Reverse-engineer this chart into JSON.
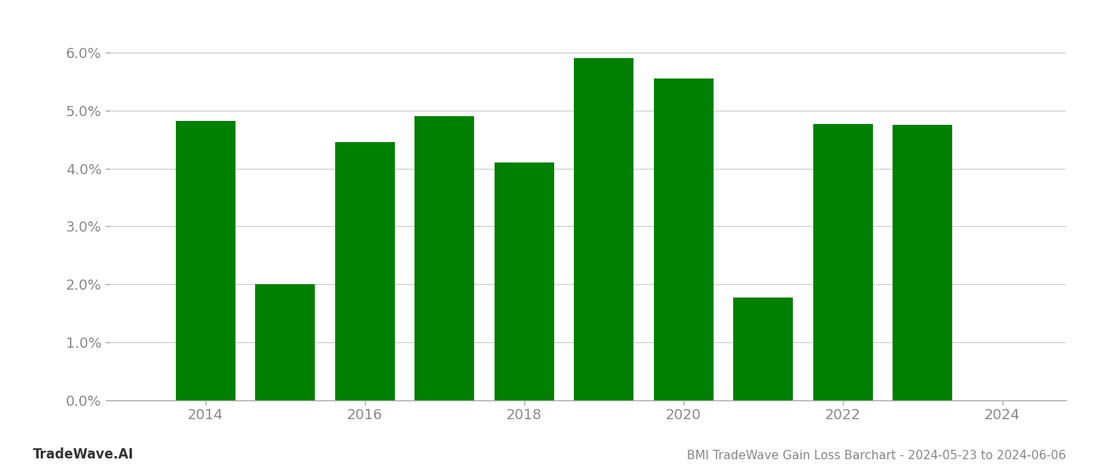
{
  "years": [
    2014,
    2015,
    2016,
    2017,
    2018,
    2019,
    2020,
    2021,
    2022,
    2023
  ],
  "values": [
    0.0482,
    0.02,
    0.0445,
    0.049,
    0.041,
    0.059,
    0.0555,
    0.0178,
    0.0477,
    0.0475
  ],
  "bar_color": "#008000",
  "background_color": "#ffffff",
  "grid_color": "#cccccc",
  "ylim": [
    0.0,
    0.065
  ],
  "yticks": [
    0.0,
    0.01,
    0.02,
    0.03,
    0.04,
    0.05,
    0.06
  ],
  "ytick_labels": [
    "0.0%",
    "1.0%",
    "2.0%",
    "3.0%",
    "4.0%",
    "5.0%",
    "6.0%"
  ],
  "xtick_labels": [
    "2014",
    "2016",
    "2018",
    "2020",
    "2022",
    "2024"
  ],
  "xtick_positions": [
    2014,
    2016,
    2018,
    2020,
    2022,
    2024
  ],
  "footer_left": "TradeWave.AI",
  "footer_right": "BMI TradeWave Gain Loss Barchart - 2024-05-23 to 2024-06-06",
  "bar_width": 0.75,
  "xlim_left": 2012.8,
  "xlim_right": 2024.8
}
